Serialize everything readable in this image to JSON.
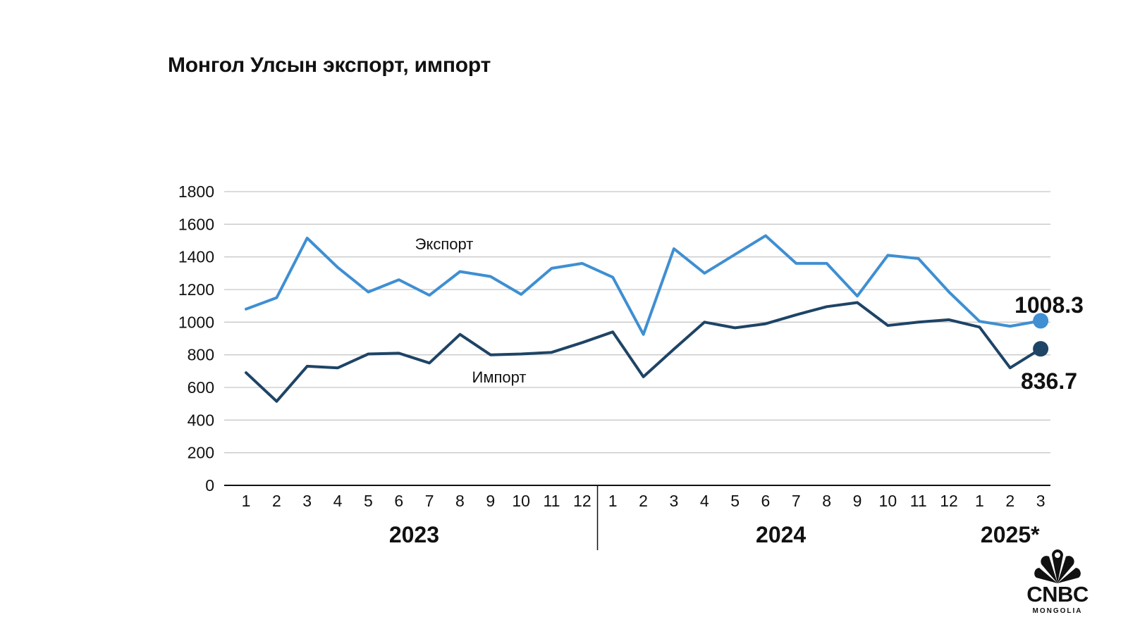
{
  "title": "Монгол Улсын экспорт, импорт",
  "logo": {
    "brand": "CNBC",
    "sub": "MONGOLIA"
  },
  "colors": {
    "export": "#3f8fd2",
    "import": "#1e4466",
    "grid": "#c8c8c8",
    "axis": "#111111",
    "text": "#111111"
  },
  "chart_data": {
    "type": "line",
    "ylim": [
      0,
      1800
    ],
    "yticks": [
      0,
      200,
      400,
      600,
      800,
      1000,
      1200,
      1400,
      1600,
      1800
    ],
    "grid": true,
    "categories": [
      "1",
      "2",
      "3",
      "4",
      "5",
      "6",
      "7",
      "8",
      "9",
      "10",
      "11",
      "12",
      "1",
      "2",
      "3",
      "4",
      "5",
      "6",
      "7",
      "8",
      "9",
      "10",
      "11",
      "12",
      "1",
      "2",
      "3"
    ],
    "groups": [
      {
        "label": "2023",
        "count": 12
      },
      {
        "label": "2024",
        "count": 12
      },
      {
        "label": "2025*",
        "count": 3
      }
    ],
    "series": [
      {
        "name": "Экспорт",
        "values": [
          1080,
          1150,
          1515,
          1335,
          1185,
          1260,
          1165,
          1310,
          1280,
          1170,
          1330,
          1360,
          1275,
          925,
          1450,
          1300,
          1415,
          1530,
          1360,
          1360,
          1160,
          1410,
          1390,
          1185,
          1005,
          975,
          1008.3
        ],
        "end_label": "1008.3"
      },
      {
        "name": "Импорт",
        "values": [
          690,
          515,
          730,
          720,
          805,
          810,
          750,
          925,
          800,
          805,
          815,
          875,
          940,
          665,
          835,
          1000,
          965,
          990,
          1045,
          1095,
          1120,
          980,
          1000,
          1015,
          970,
          720,
          836.7
        ],
        "end_label": "836.7"
      }
    ]
  }
}
